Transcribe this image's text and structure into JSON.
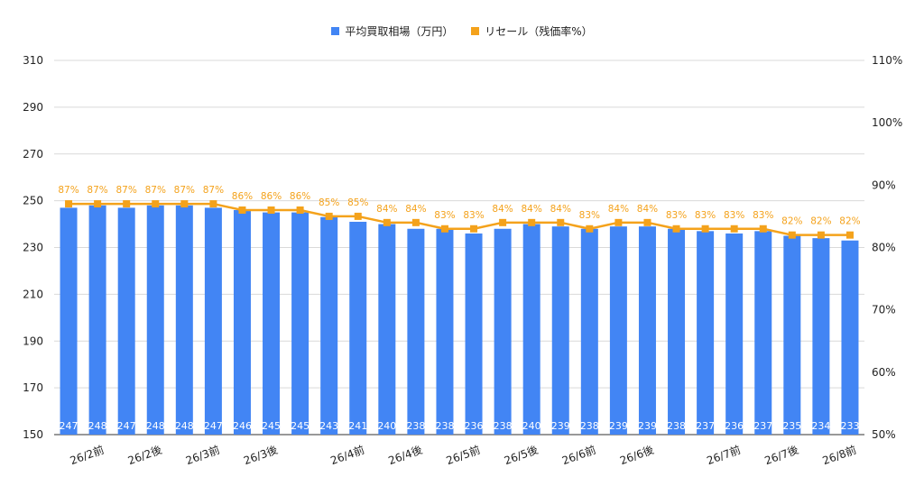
{
  "chart_data": {
    "type": "bar",
    "categories": [
      "",
      "26/2前",
      "",
      "26/2後",
      "",
      "26/3前",
      "",
      "26/3後",
      "",
      "",
      "26/4前",
      "",
      "26/4後",
      "",
      "26/5前",
      "",
      "26/5後",
      "",
      "26/6前",
      "",
      "26/6後",
      "",
      "",
      "26/7前",
      "",
      "26/7後",
      "",
      "26/8前"
    ],
    "series": [
      {
        "name": "平均買取相場（万円）",
        "type": "bar",
        "axis": "left",
        "color": "#4285f4",
        "values": [
          247,
          248,
          247,
          248,
          248,
          247,
          246,
          245,
          245,
          243,
          241,
          240,
          238,
          238,
          236,
          238,
          240,
          239,
          238,
          239,
          239,
          238,
          237,
          236,
          237,
          235,
          234,
          233
        ],
        "labels": [
          "247",
          "248",
          "247",
          "248",
          "248",
          "247",
          "246",
          "245",
          "245",
          "243",
          "241",
          "240",
          "238",
          "238",
          "236",
          "238",
          "240",
          "239",
          "238",
          "239",
          "239",
          "238",
          "237",
          "236",
          "237",
          "235",
          "234",
          "233"
        ]
      },
      {
        "name": "リセール（残価率%）",
        "type": "line",
        "axis": "right",
        "color": "#f4a21b",
        "values": [
          87,
          87,
          87,
          87,
          87,
          87,
          86,
          86,
          86,
          85,
          85,
          84,
          84,
          83,
          83,
          84,
          84,
          84,
          83,
          84,
          84,
          83,
          83,
          83,
          83,
          82,
          82,
          82
        ],
        "labels": [
          "87%",
          "87%",
          "87%",
          "87%",
          "87%",
          "87%",
          "86%",
          "86%",
          "86%",
          "85%",
          "85%",
          "84%",
          "84%",
          "83%",
          "83%",
          "84%",
          "84%",
          "84%",
          "83%",
          "84%",
          "84%",
          "83%",
          "83%",
          "83%",
          "83%",
          "82%",
          "82%",
          "82%"
        ]
      }
    ],
    "y_left": {
      "range": [
        150,
        310
      ],
      "ticks": [
        "150",
        "170",
        "190",
        "210",
        "230",
        "250",
        "270",
        "290",
        "310"
      ]
    },
    "y_right": {
      "range": [
        50,
        110
      ],
      "ticks": [
        "50%",
        "60%",
        "70%",
        "80%",
        "90%",
        "100%",
        "110%"
      ]
    },
    "grid": true,
    "legend_position": "top"
  }
}
